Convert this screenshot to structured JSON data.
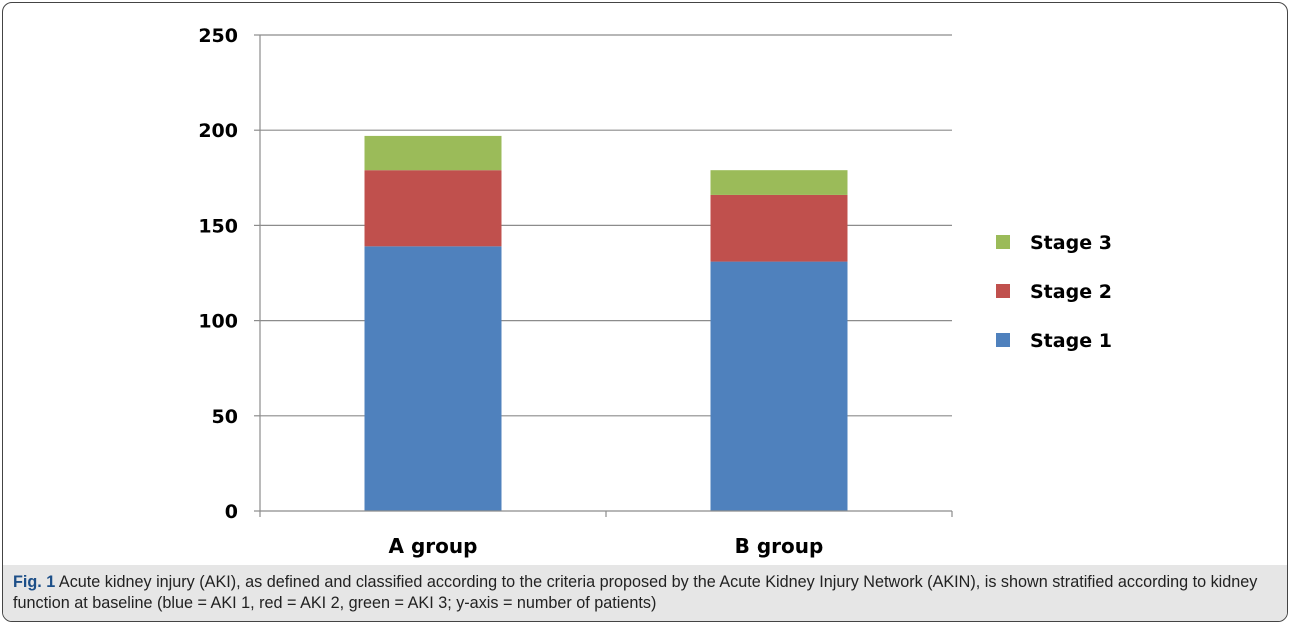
{
  "chart_data": {
    "type": "bar",
    "stacked": true,
    "categories": [
      "A group",
      "B group"
    ],
    "series": [
      {
        "name": "Stage 1",
        "values": [
          139,
          131
        ],
        "color": "#4f81bd"
      },
      {
        "name": "Stage 2",
        "values": [
          40,
          35
        ],
        "color": "#c0504d"
      },
      {
        "name": "Stage 3",
        "values": [
          18,
          13
        ],
        "color": "#9bbb59"
      }
    ],
    "ylim": [
      0,
      250
    ],
    "yticks": [
      0,
      50,
      100,
      150,
      200,
      250
    ],
    "grid": true,
    "legend": "right",
    "legend_order": [
      "Stage 3",
      "Stage 2",
      "Stage 1"
    ]
  },
  "caption": {
    "label": "Fig. 1",
    "text": "Acute kidney injury (AKI), as defined and classified according to the criteria proposed by the Acute Kidney Injury Network (AKIN), is shown stratified according to kidney function at baseline (blue = AKI 1, red = AKI 2, green = AKI 3; y-axis = number of patients)"
  }
}
